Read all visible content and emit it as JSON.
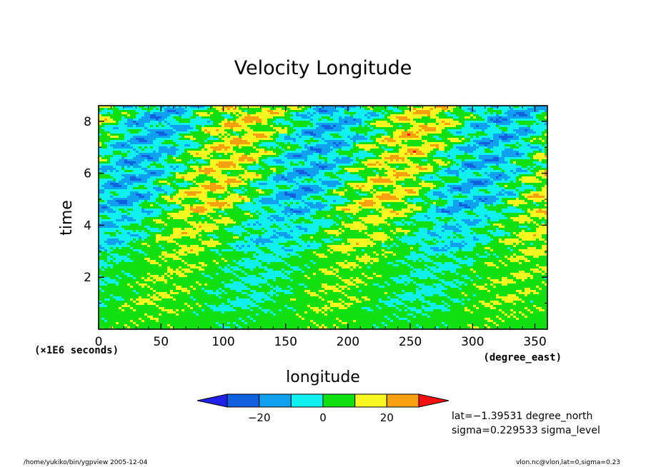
{
  "chart_data": {
    "type": "heatmap",
    "title": "Velocity Longitude",
    "xlabel": "longitude",
    "ylabel": "time",
    "x_units": "(degree_east)",
    "y_units": "(×1E6 seconds)",
    "xlim": [
      0,
      360
    ],
    "ylim": [
      0,
      8.6
    ],
    "x_ticks": [
      "0",
      "50",
      "100",
      "150",
      "200",
      "250",
      "300",
      "350"
    ],
    "y_ticks": [
      "2",
      "4",
      "6",
      "8"
    ],
    "colorbar": {
      "levels": [
        -30,
        -20,
        -10,
        0,
        10,
        20,
        30
      ],
      "tick_labels": [
        "−20",
        "0",
        "20"
      ],
      "colors": [
        "#2020e8",
        "#1060e0",
        "#10a0f0",
        "#10f0f0",
        "#10e010",
        "#f8f820",
        "#f8a010",
        "#f81010"
      ]
    },
    "annotations": {
      "lat": "lat=−1.39531 degree_north",
      "sigma": "sigma=0.229533 sigma_level",
      "footer_left": "/home/yukiko/bin/ygpview  2005-12-04",
      "footer_right": "vlon.nc@vlon,lat=0,sigma=0.23"
    }
  }
}
